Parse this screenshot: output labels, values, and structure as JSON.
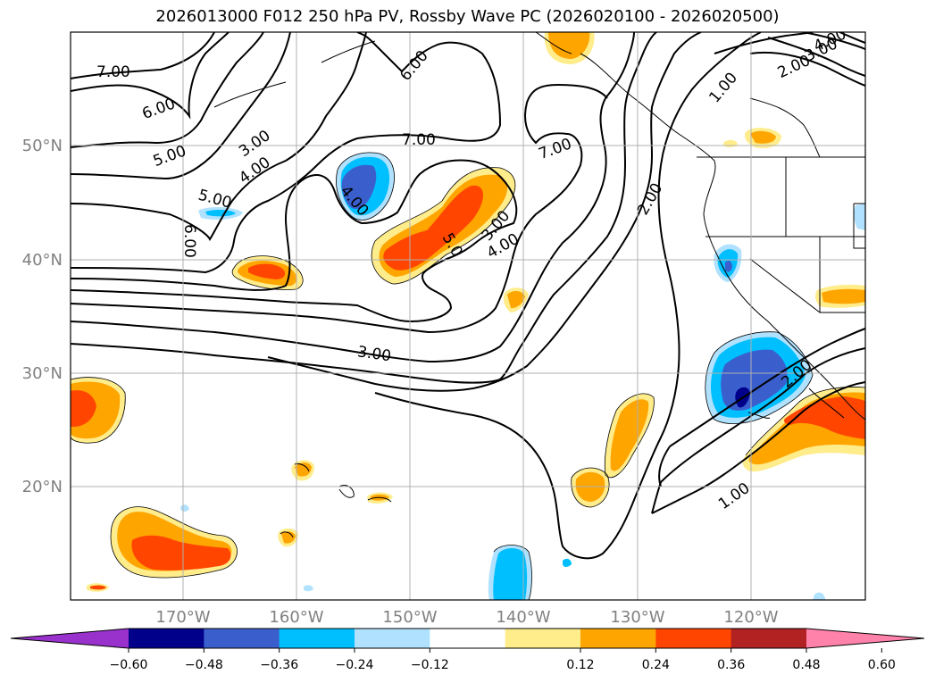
{
  "title": "2026013000 F012 250 hPa PV, Rossby Wave PC (2026020100 - 2026020500)",
  "map": {
    "lon_ticks": [
      "170°W",
      "160°W",
      "150°W",
      "140°W",
      "130°W",
      "120°W"
    ],
    "lat_ticks": [
      "50°N",
      "40°N",
      "30°N",
      "20°N"
    ],
    "contour_labels": [
      "7.00",
      "6.00",
      "5.00",
      "3.00",
      "4.00",
      "5.00",
      "6.00",
      "6.00",
      "7.00",
      "7.00",
      "3.00",
      "4.00",
      "5.0",
      "3.00",
      "2.00",
      "1.00",
      "2.00",
      "3.00",
      "4.00",
      "4.00",
      "2.00",
      "1.00"
    ]
  },
  "colorbar": {
    "ticks": [
      "−0.60",
      "−0.48",
      "−0.36",
      "−0.24",
      "−0.12",
      "0.12",
      "0.24",
      "0.36",
      "0.48",
      "0.60"
    ],
    "colors": [
      "#9932cc",
      "#00008b",
      "#3a5fcd",
      "#00bfff",
      "#b0e2ff",
      "#ffffff",
      "#ffec8b",
      "#ffa500",
      "#ff4500",
      "#b22222",
      "#ff82ab"
    ]
  }
}
